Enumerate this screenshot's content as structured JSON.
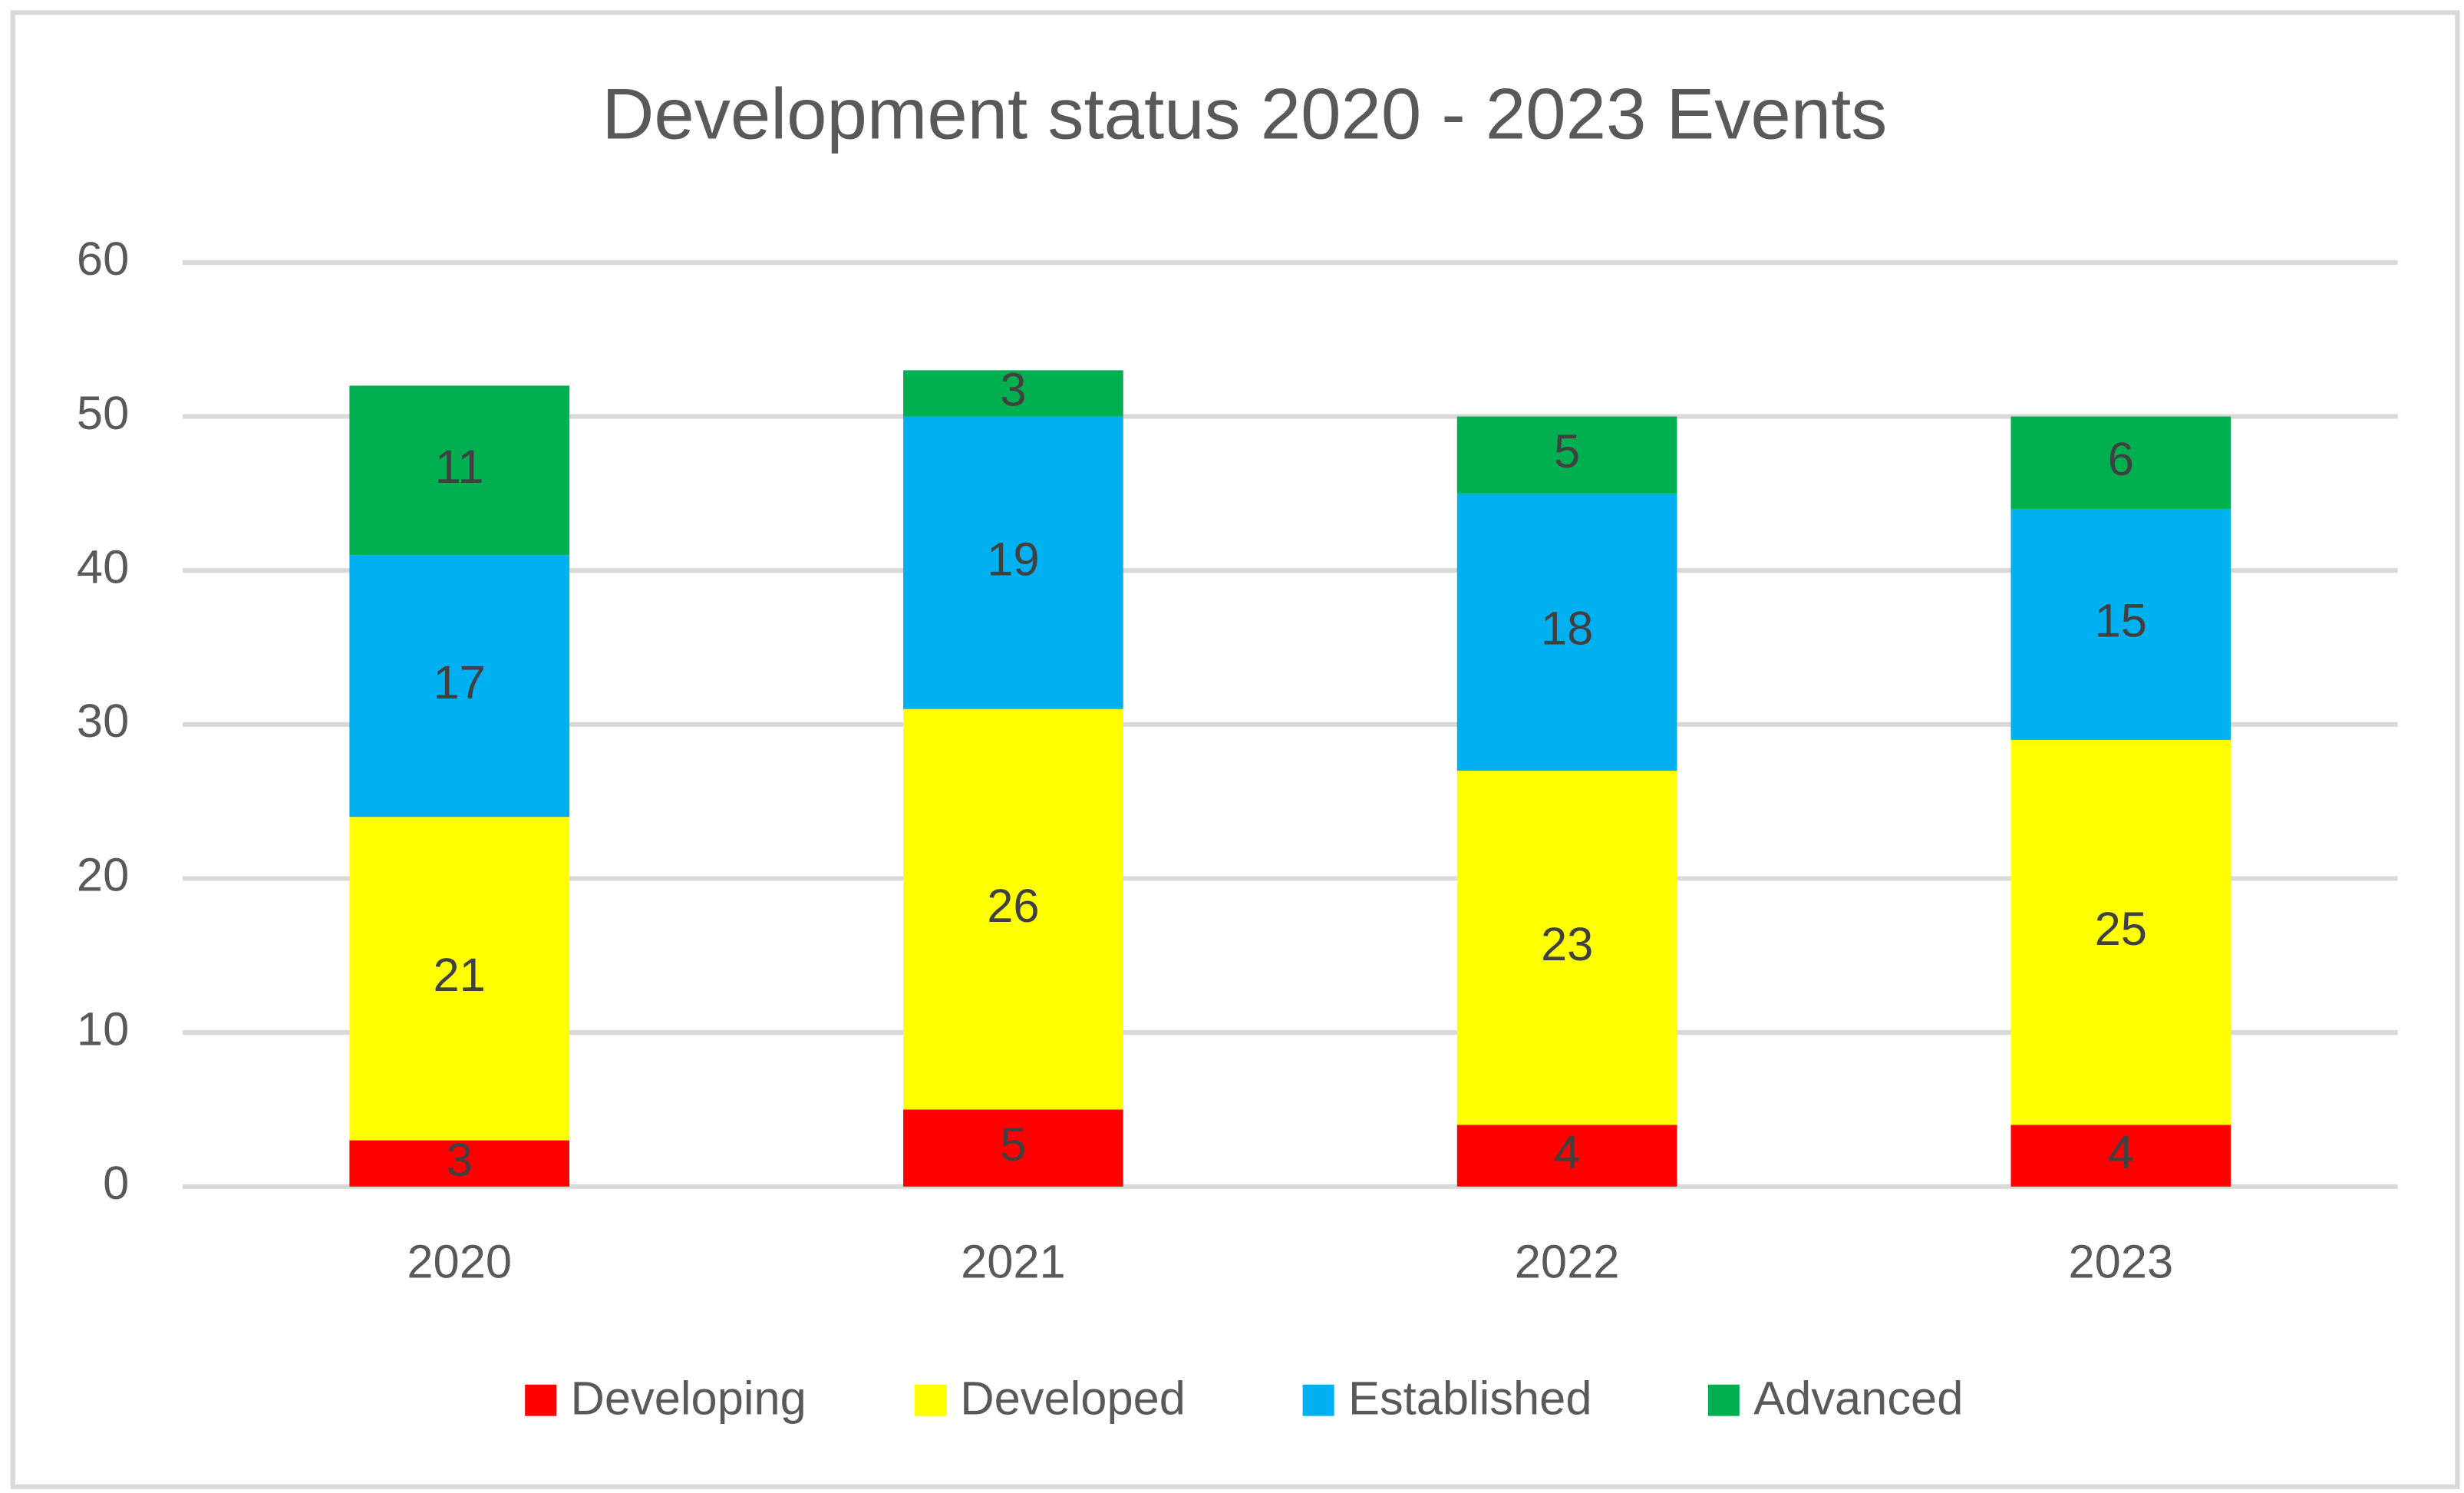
{
  "chart_data": {
    "type": "stacked_bar",
    "title": "Development status 2020 - 2023 Events",
    "categories": [
      "2020",
      "2021",
      "2022",
      "2023"
    ],
    "series": [
      {
        "name": "Developing",
        "color": "#ff0000",
        "values": [
          3,
          5,
          4,
          4
        ]
      },
      {
        "name": "Developed",
        "color": "#ffff00",
        "values": [
          21,
          26,
          23,
          25
        ]
      },
      {
        "name": "Established",
        "color": "#00b0f0",
        "values": [
          17,
          19,
          18,
          15
        ]
      },
      {
        "name": "Advanced",
        "color": "#00b050",
        "values": [
          11,
          3,
          5,
          6
        ]
      }
    ],
    "ylim": [
      0,
      60
    ],
    "yticks": [
      0,
      10,
      20,
      30,
      40,
      50,
      60
    ],
    "grid": true,
    "legend": "bottom"
  }
}
